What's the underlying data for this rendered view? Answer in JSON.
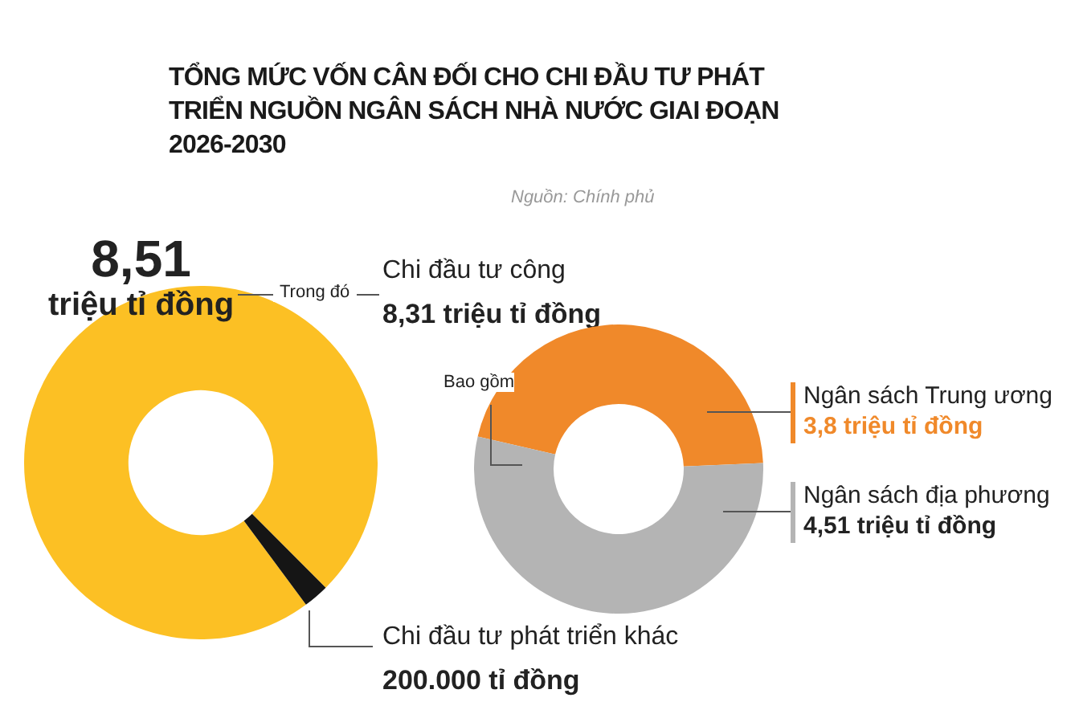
{
  "chart_data": [
    {
      "type": "donut",
      "title": "TỔNG MỨC VỐN CÂN ĐỐI CHO CHI ĐẦU TƯ PHÁT TRIỂN NGUỒN NGÂN SÁCH NHÀ NƯỚC GIAI ĐOẠN 2026-2030",
      "subtitle": "8,51 triệu tỉ đồng",
      "annotations": [
        "Nguồn: Chính phủ",
        "Trong đó",
        "8,31 triệu tỉ đồng",
        "200.000 tỉ đồng"
      ],
      "categories": [
        "Chi đầu tư công",
        "Chi đầu tư phát triển khác"
      ],
      "values": [
        97.65,
        2.35
      ],
      "colors": [
        "#fcc024",
        "#151515"
      ],
      "legend": false
    },
    {
      "type": "donut",
      "annotations": [
        "Bao gồm"
      ],
      "categories": [
        "Ngân sách Trung ương",
        "Ngân sách địa phương"
      ],
      "values": [
        3.8,
        4.51
      ],
      "value_labels": [
        "3,8 triệu tỉ đồng",
        "4,51 triệu tỉ đồng"
      ],
      "colors": [
        "#f0892a",
        "#b4b4b4"
      ],
      "legend": false
    }
  ]
}
